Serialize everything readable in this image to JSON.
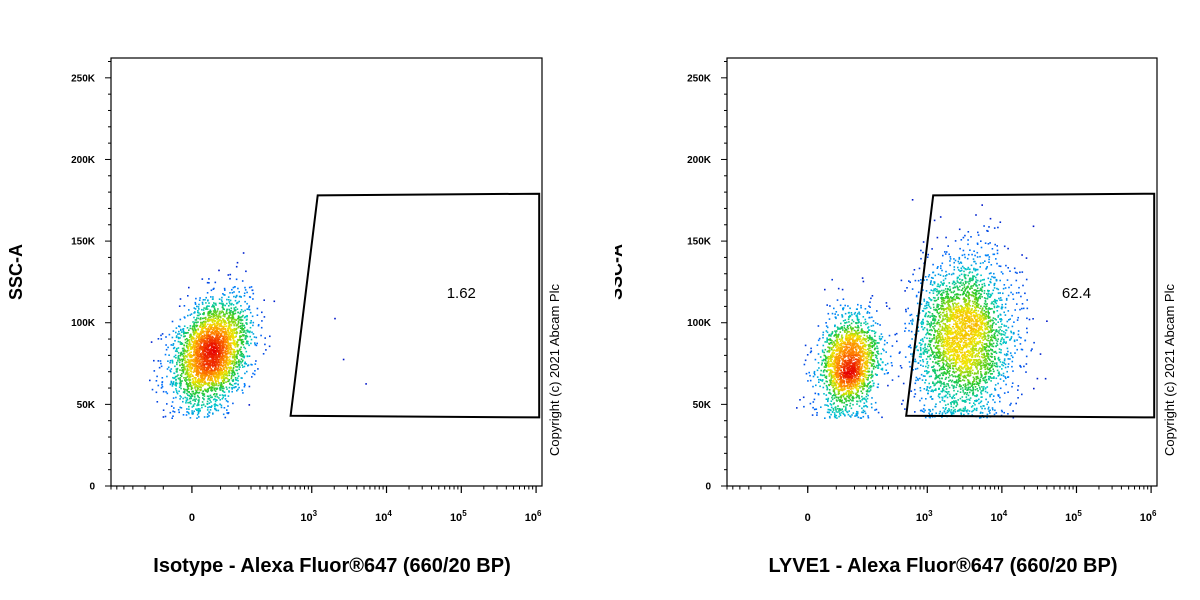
{
  "chart_data": [
    {
      "type": "scatter",
      "subtype": "flow-cytometry-density-dot-plot",
      "xlabel": "Isotype - Alexa Fluor®647 (660/20 BP)",
      "ylabel": "SSC-A",
      "xscale": "biexponential",
      "xlim": [
        -300,
        1200000
      ],
      "ylim": [
        0,
        262144
      ],
      "x_ticks": [
        {
          "base": "0",
          "exp": "",
          "value": 0
        },
        {
          "base": "10",
          "exp": "3",
          "value": 1000
        },
        {
          "base": "10",
          "exp": "4",
          "value": 10000
        },
        {
          "base": "10",
          "exp": "5",
          "value": 100000
        },
        {
          "base": "10",
          "exp": "6",
          "value": 1000000
        }
      ],
      "y_ticks": [
        {
          "label": "0",
          "value": 0
        },
        {
          "label": "50K",
          "value": 50000
        },
        {
          "label": "100K",
          "value": 100000
        },
        {
          "label": "150K",
          "value": 150000
        },
        {
          "label": "200K",
          "value": 200000
        },
        {
          "label": "250K",
          "value": 250000
        }
      ],
      "gate": {
        "label": "1.62",
        "label_position": {
          "x": 100000,
          "y": 115000
        },
        "vertices": [
          [
            520,
            43000
          ],
          [
            1200,
            178000
          ],
          [
            1100000,
            179000
          ],
          [
            1100000,
            42000
          ]
        ]
      },
      "populations": [
        {
          "center_x": 30,
          "center_y": 82000,
          "spread_x": 0.55,
          "spread_y": 16000,
          "fraction": 0.985,
          "tilt": 0.9
        }
      ],
      "outliers": [
        [
          2600,
          78000
        ],
        [
          2000,
          103000
        ],
        [
          5200,
          63000
        ]
      ],
      "copyright": "Copyright (c) 2021 Abcam Plc",
      "grid": false
    },
    {
      "type": "scatter",
      "subtype": "flow-cytometry-density-dot-plot",
      "xlabel": "LYVE1 - Alexa Fluor®647 (660/20 BP)",
      "ylabel": "SSC-A",
      "xscale": "biexponential",
      "xlim": [
        -300,
        1200000
      ],
      "ylim": [
        0,
        262144
      ],
      "x_ticks": [
        {
          "base": "0",
          "exp": "",
          "value": 0
        },
        {
          "base": "10",
          "exp": "3",
          "value": 1000
        },
        {
          "base": "10",
          "exp": "4",
          "value": 10000
        },
        {
          "base": "10",
          "exp": "5",
          "value": 100000
        },
        {
          "base": "10",
          "exp": "6",
          "value": 1000000
        }
      ],
      "y_ticks": [
        {
          "label": "0",
          "value": 0
        },
        {
          "label": "50K",
          "value": 50000
        },
        {
          "label": "100K",
          "value": 100000
        },
        {
          "label": "150K",
          "value": 150000
        },
        {
          "label": "200K",
          "value": 200000
        },
        {
          "label": "250K",
          "value": 250000
        }
      ],
      "gate": {
        "label": "62.4",
        "label_position": {
          "x": 100000,
          "y": 115000
        },
        "vertices": [
          [
            520,
            43000
          ],
          [
            1200,
            178000
          ],
          [
            1100000,
            179000
          ],
          [
            1100000,
            42000
          ]
        ]
      },
      "populations": [
        {
          "center_x": 80,
          "center_y": 75000,
          "spread_x": 0.45,
          "spread_y": 15000,
          "fraction": 0.38,
          "tilt": 0.4
        },
        {
          "center_x": 3000,
          "center_y": 92000,
          "spread_x": 0.75,
          "spread_y": 24000,
          "fraction": 0.62,
          "tilt": 0.1
        }
      ],
      "outliers": [],
      "copyright": "Copyright (c) 2021 Abcam Plc",
      "grid": false
    }
  ]
}
